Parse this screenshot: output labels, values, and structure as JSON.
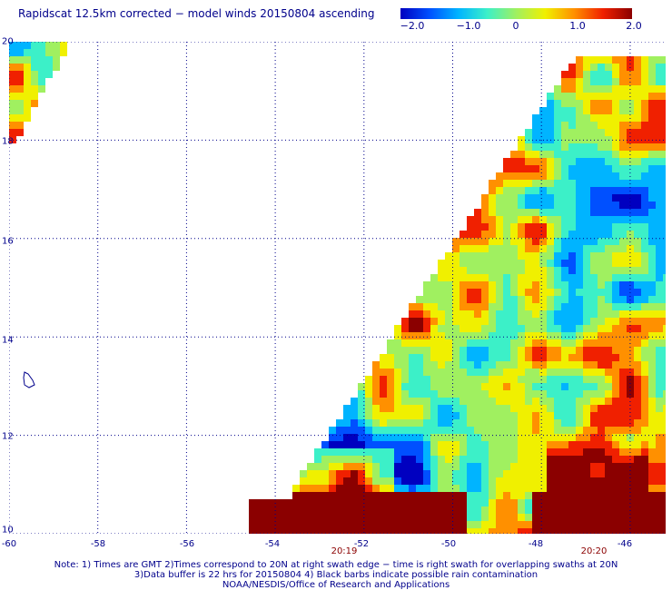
{
  "title": "Rapidscat 12.5km corrected − model winds 20150804 ascending",
  "colorbar": {
    "ticks": [
      "−2.0",
      "−1.0",
      "0",
      "1.0",
      "2.0"
    ],
    "tick_values": [
      -2.0,
      -1.0,
      0,
      1.0,
      2.0
    ],
    "range": [
      -2.0,
      2.0
    ],
    "colors": [
      "#0000c0",
      "#0050ff",
      "#00b4ff",
      "#3cf0c8",
      "#a0f060",
      "#f0f000",
      "#ff9000",
      "#f02000",
      "#8b0000"
    ]
  },
  "map": {
    "lon_labels": [
      "-60",
      "-58",
      "-56",
      "-54",
      "-52",
      "-50",
      "-48",
      "-46"
    ],
    "lon_values": [
      -60,
      -58,
      -56,
      -54,
      -52,
      -50,
      -48,
      -46
    ],
    "lat_labels": [
      "20",
      "18",
      "16",
      "14",
      "12",
      "10"
    ],
    "lat_values": [
      20,
      18,
      16,
      14,
      12,
      10
    ],
    "lon_range": [
      -60,
      -45.2
    ],
    "lat_range": [
      10,
      20
    ],
    "grid": true,
    "gridline_color": "#00008b"
  },
  "times": [
    {
      "label": "20:19",
      "lon": -52.5
    },
    {
      "label": "20:20",
      "lon": -47
    }
  ],
  "notes": [
    "Note: 1) Times are GMT 2)Times correspond to 20N at right swath edge − time is right swath for overlapping swaths at 20N",
    "3)Data buffer is 22 hrs for 20150804 4) Black barbs indicate possible rain contamination",
    "NOAA/NESDIS/Office of Research and Applications"
  ]
}
